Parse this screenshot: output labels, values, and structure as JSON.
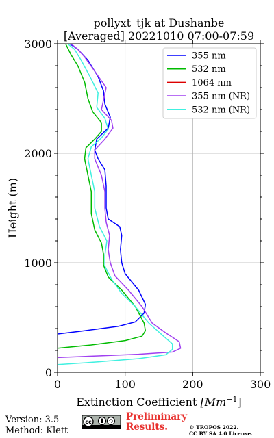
{
  "chart_data": {
    "type": "line",
    "title": "pollyxt_tjk at Dushanbe",
    "subtitle": "[Averaged] 20221010 07:00-07:59",
    "xlabel": "Extinction Coefficient",
    "xunit": "[Mm",
    "xunit_exp": "−1",
    "xunit_close": "]",
    "ylabel": "Height (m)",
    "xlim": [
      0,
      300
    ],
    "ylim": [
      0,
      3000
    ],
    "xticks": [
      0,
      100,
      200,
      300
    ],
    "yticks": [
      0,
      1000,
      2000,
      3000
    ],
    "grid": true,
    "legend_position": "top-right",
    "series": [
      {
        "name": "355 nm",
        "color": "#0000ff",
        "points": [
          [
            0,
            350
          ],
          [
            40,
            380
          ],
          [
            90,
            420
          ],
          [
            115,
            460
          ],
          [
            128,
            540
          ],
          [
            130,
            620
          ],
          [
            120,
            750
          ],
          [
            100,
            900
          ],
          [
            95,
            1000
          ],
          [
            93,
            1120
          ],
          [
            95,
            1250
          ],
          [
            92,
            1330
          ],
          [
            75,
            1400
          ],
          [
            72,
            1500
          ],
          [
            72,
            1700
          ],
          [
            70,
            1850
          ],
          [
            60,
            1950
          ],
          [
            55,
            2030
          ],
          [
            58,
            2130
          ],
          [
            75,
            2230
          ],
          [
            78,
            2330
          ],
          [
            70,
            2450
          ],
          [
            68,
            2570
          ],
          [
            60,
            2700
          ],
          [
            45,
            2850
          ],
          [
            30,
            2950
          ],
          [
            18,
            3000
          ]
        ]
      },
      {
        "name": "532 nm",
        "color": "#00bb00",
        "points": [
          [
            0,
            220
          ],
          [
            50,
            250
          ],
          [
            100,
            290
          ],
          [
            125,
            330
          ],
          [
            130,
            380
          ],
          [
            128,
            450
          ],
          [
            115,
            600
          ],
          [
            95,
            750
          ],
          [
            75,
            870
          ],
          [
            68,
            980
          ],
          [
            68,
            1080
          ],
          [
            65,
            1180
          ],
          [
            55,
            1300
          ],
          [
            50,
            1450
          ],
          [
            50,
            1650
          ],
          [
            45,
            1800
          ],
          [
            40,
            1950
          ],
          [
            42,
            2050
          ],
          [
            55,
            2130
          ],
          [
            65,
            2200
          ],
          [
            65,
            2280
          ],
          [
            52,
            2380
          ],
          [
            45,
            2500
          ],
          [
            40,
            2650
          ],
          [
            30,
            2800
          ],
          [
            20,
            2900
          ],
          [
            12,
            3000
          ]
        ]
      },
      {
        "name": "1064 nm",
        "color": "#dd0000",
        "points": []
      },
      {
        "name": "355 nm (NR)",
        "color": "#a040f0",
        "points": [
          [
            0,
            135
          ],
          [
            60,
            150
          ],
          [
            120,
            165
          ],
          [
            170,
            185
          ],
          [
            182,
            220
          ],
          [
            180,
            280
          ],
          [
            160,
            360
          ],
          [
            140,
            450
          ],
          [
            125,
            600
          ],
          [
            105,
            750
          ],
          [
            85,
            880
          ],
          [
            78,
            1000
          ],
          [
            75,
            1120
          ],
          [
            77,
            1250
          ],
          [
            72,
            1370
          ],
          [
            70,
            1500
          ],
          [
            70,
            1650
          ],
          [
            65,
            1800
          ],
          [
            55,
            1950
          ],
          [
            55,
            2030
          ],
          [
            70,
            2130
          ],
          [
            82,
            2230
          ],
          [
            80,
            2300
          ],
          [
            65,
            2400
          ],
          [
            72,
            2600
          ],
          [
            55,
            2750
          ],
          [
            40,
            2880
          ],
          [
            30,
            2950
          ],
          [
            20,
            3000
          ]
        ]
      },
      {
        "name": "532 nm (NR)",
        "color": "#40f0e0",
        "points": [
          [
            0,
            70
          ],
          [
            60,
            95
          ],
          [
            120,
            125
          ],
          [
            160,
            160
          ],
          [
            170,
            210
          ],
          [
            170,
            260
          ],
          [
            155,
            340
          ],
          [
            135,
            450
          ],
          [
            115,
            600
          ],
          [
            95,
            720
          ],
          [
            80,
            850
          ],
          [
            70,
            970
          ],
          [
            70,
            1070
          ],
          [
            73,
            1200
          ],
          [
            62,
            1330
          ],
          [
            55,
            1500
          ],
          [
            55,
            1650
          ],
          [
            50,
            1800
          ],
          [
            45,
            1950
          ],
          [
            50,
            2060
          ],
          [
            65,
            2140
          ],
          [
            75,
            2220
          ],
          [
            70,
            2320
          ],
          [
            58,
            2420
          ],
          [
            60,
            2550
          ],
          [
            48,
            2700
          ],
          [
            35,
            2850
          ],
          [
            25,
            2950
          ],
          [
            15,
            3000
          ]
        ]
      }
    ]
  },
  "footer": {
    "version": "Version: 3.5",
    "method": "Method: Klett",
    "cc_text": "cc BY SA",
    "prelim1": "Preliminary",
    "prelim2": "Results.",
    "tropos1": "© TROPOS 2022.",
    "tropos2": "CC BY SA 4.0 License."
  }
}
